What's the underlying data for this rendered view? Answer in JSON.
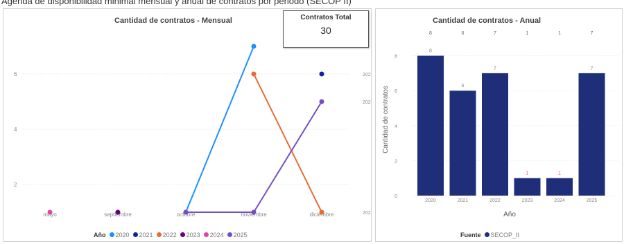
{
  "top_strip_text": "Agenda de disponibilidad minimal mensual y anual de contratos por periodo (SECOP II)",
  "monthly": {
    "title": "Cantidad de contratos - Mensual",
    "kpi": {
      "label": "Contratos Total",
      "value": "30"
    },
    "legend_title": "Año",
    "legend_items": [
      {
        "label": "2020",
        "color": "#1f8fff"
      },
      {
        "label": "2021",
        "color": "#12239e"
      },
      {
        "label": "2022",
        "color": "#e66c37"
      },
      {
        "label": "2023",
        "color": "#6b007b"
      },
      {
        "label": "2024",
        "color": "#e044a7"
      },
      {
        "label": "2025",
        "color": "#744ec2"
      }
    ],
    "right_labels": [
      "2021",
      "2025",
      "2022"
    ]
  },
  "annual": {
    "title": "Cantidad de contratos - Anual",
    "legend_title": "Fuente",
    "legend_items": [
      {
        "label": "SECOP_II",
        "color": "#1f2e78"
      }
    ]
  },
  "chart_data": [
    {
      "type": "line",
      "title": "Cantidad de contratos - Mensual",
      "categories": [
        "mayo",
        "septiembre",
        "octubre",
        "noviembre",
        "diciembre"
      ],
      "ylim": [
        0,
        7
      ],
      "yticks": [
        2,
        4,
        6
      ],
      "grid": true,
      "legend_placement": "bottom",
      "series": [
        {
          "name": "2020",
          "color": "#1f8fff",
          "values": [
            null,
            null,
            1,
            7,
            null
          ]
        },
        {
          "name": "2021",
          "color": "#12239e",
          "values": [
            null,
            null,
            null,
            null,
            6
          ]
        },
        {
          "name": "2022",
          "color": "#e66c37",
          "values": [
            null,
            null,
            null,
            6,
            1
          ]
        },
        {
          "name": "2023",
          "color": "#6b007b",
          "values": [
            null,
            1,
            null,
            null,
            null
          ]
        },
        {
          "name": "2024",
          "color": "#e044a7",
          "values": [
            1,
            null,
            null,
            null,
            null
          ]
        },
        {
          "name": "2025",
          "color": "#744ec2",
          "values": [
            null,
            null,
            1,
            1,
            5
          ]
        }
      ]
    },
    {
      "type": "bar",
      "title": "Cantidad de contratos - Anual",
      "xlabel": "Año",
      "ylabel": "Cantidad de contratos",
      "categories": [
        "2020",
        "2021",
        "2022",
        "2023",
        "2024",
        "2025"
      ],
      "values": [
        8,
        6,
        7,
        1,
        1,
        7
      ],
      "top_labels": [
        "8",
        "6",
        "7",
        "1",
        "1",
        "7"
      ],
      "ylim": [
        0,
        8.6
      ],
      "yticks": [
        0,
        2,
        4,
        6,
        8
      ],
      "grid": true,
      "legend_placement": "bottom",
      "series": [
        {
          "name": "SECOP_II",
          "color": "#1f2e78",
          "values": [
            8,
            6,
            7,
            1,
            1,
            7
          ]
        }
      ]
    }
  ]
}
